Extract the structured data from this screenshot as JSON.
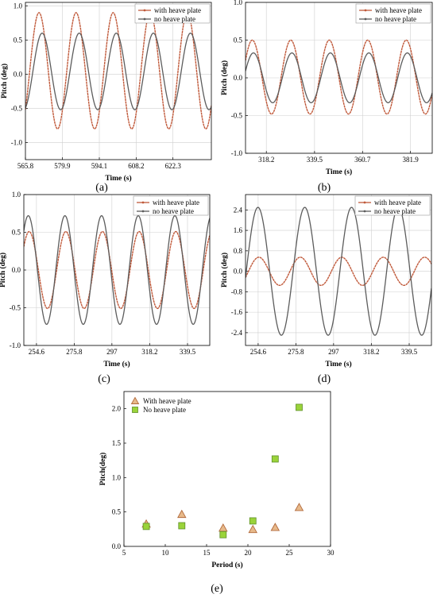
{
  "colors": {
    "with_heave_plate": "#c0593a",
    "no_heave_plate": "#5c5c5c",
    "scatter_triangle_fill": "#e7b98a",
    "scatter_triangle_stroke": "#b26a3c",
    "scatter_square_fill": "#9ad33a",
    "scatter_square_stroke": "#5f8f2a"
  },
  "chart_data": [
    {
      "id": "a",
      "type": "line",
      "panel_label": "(a)",
      "xlabel": "Time (s)",
      "ylabel": "Pitch (deg)",
      "xlim": [
        565.8,
        637.0
      ],
      "ylim": [
        -1.25,
        1.05
      ],
      "xticks": [
        565.8,
        579.9,
        594.1,
        608.2,
        622.3
      ],
      "yticks": [
        -1.0,
        -0.5,
        0.0,
        0.5,
        1.0
      ],
      "ytick_labels": [
        "-1.0",
        "-0.5",
        "0.0",
        "0.5",
        "1.0"
      ],
      "legend_position": "top-right",
      "series": [
        {
          "name": "with heave plate",
          "role": "with",
          "amplitude": 0.85,
          "offset": 0.05,
          "period": 14.2,
          "phase_time": 571.0
        },
        {
          "name": "no heave plate",
          "role": "no",
          "amplitude": 0.56,
          "offset": 0.04,
          "period": 14.2,
          "phase_time": 572.2
        }
      ]
    },
    {
      "id": "b",
      "type": "line",
      "panel_label": "(b)",
      "xlabel": "Time (s)",
      "ylabel": "Pitch (deg)",
      "xlim": [
        309.0,
        391.5
      ],
      "ylim": [
        -1.0,
        1.0
      ],
      "xticks": [
        318.2,
        339.5,
        360.7,
        381.9
      ],
      "yticks": [
        -1.0,
        -0.5,
        0.0,
        0.5,
        1.0
      ],
      "ytick_labels": [
        "-1.0",
        "-0.5",
        "0.0",
        "0.5",
        "1.0"
      ],
      "legend_position": "top-right",
      "series": [
        {
          "name": "with heave plate",
          "role": "with",
          "amplitude": 0.49,
          "offset": 0.01,
          "period": 17.0,
          "phase_time": 312.0
        },
        {
          "name": "no heave plate",
          "role": "no",
          "amplitude": 0.33,
          "offset": 0.0,
          "period": 17.0,
          "phase_time": 312.5
        }
      ]
    },
    {
      "id": "c",
      "type": "line",
      "panel_label": "(c)",
      "xlabel": "Time (s)",
      "ylabel": "Pitch (deg)",
      "xlim": [
        247.5,
        352.0
      ],
      "ylim": [
        -1.0,
        1.0
      ],
      "xticks": [
        254.6,
        275.8,
        297.0,
        318.2,
        339.5
      ],
      "yticks": [
        -1.0,
        -0.5,
        0.0,
        0.5,
        1.0
      ],
      "ytick_labels": [
        "-1.0",
        "-0.5",
        "0.0",
        "0.5",
        "1.0"
      ],
      "legend_position": "top-right",
      "series": [
        {
          "name": "with heave plate",
          "role": "with",
          "amplitude": 0.51,
          "offset": 0.0,
          "period": 20.6,
          "phase_time": 250.5
        },
        {
          "name": "no heave plate",
          "role": "no",
          "amplitude": 0.72,
          "offset": 0.0,
          "period": 20.6,
          "phase_time": 250.0
        }
      ]
    },
    {
      "id": "d",
      "type": "line",
      "panel_label": "(d)",
      "xlabel": "Time (s)",
      "ylabel": "Pitch (deg)",
      "xlim": [
        247.5,
        352.0
      ],
      "ylim": [
        -2.9,
        3.0
      ],
      "xticks": [
        254.6,
        275.8,
        297.0,
        318.2,
        339.5
      ],
      "yticks": [
        -2.4,
        -1.6,
        -0.8,
        0.0,
        0.8,
        1.6,
        2.4
      ],
      "ytick_labels": [
        "-2.4",
        "-1.6",
        "-0.8",
        "0.0",
        "0.8",
        "1.6",
        "2.4"
      ],
      "legend_position": "top-right",
      "series": [
        {
          "name": "with heave plate",
          "role": "with",
          "amplitude": 0.55,
          "offset": 0.0,
          "period": 23.3,
          "phase_time": 255.0
        },
        {
          "name": "no heave plate",
          "role": "no",
          "amplitude": 2.5,
          "offset": 0.0,
          "period": 26.3,
          "phase_time": 254.5
        }
      ]
    },
    {
      "id": "e",
      "type": "scatter",
      "panel_label": "(e)",
      "xlabel": "Period (s)",
      "ylabel": "Pitch(deg)",
      "xlim": [
        5,
        30
      ],
      "ylim": [
        0.0,
        2.25
      ],
      "xticks": [
        5,
        10,
        15,
        20,
        25,
        30
      ],
      "yticks": [
        0.0,
        0.5,
        1.0,
        1.5,
        2.0
      ],
      "ytick_labels": [
        "0.0",
        "0.5",
        "1.0",
        "1.5",
        "2.0"
      ],
      "legend_position": "top-left",
      "series": [
        {
          "name": "With heave plate",
          "marker": "triangle",
          "x": [
            7.7,
            12.0,
            17.0,
            20.6,
            23.3,
            26.2
          ],
          "y": [
            0.32,
            0.46,
            0.26,
            0.24,
            0.27,
            0.56
          ]
        },
        {
          "name": "No heave plate",
          "marker": "square",
          "x": [
            7.7,
            12.0,
            17.0,
            20.6,
            23.3,
            26.2
          ],
          "y": [
            0.29,
            0.3,
            0.17,
            0.37,
            1.27,
            2.02
          ]
        }
      ]
    }
  ]
}
